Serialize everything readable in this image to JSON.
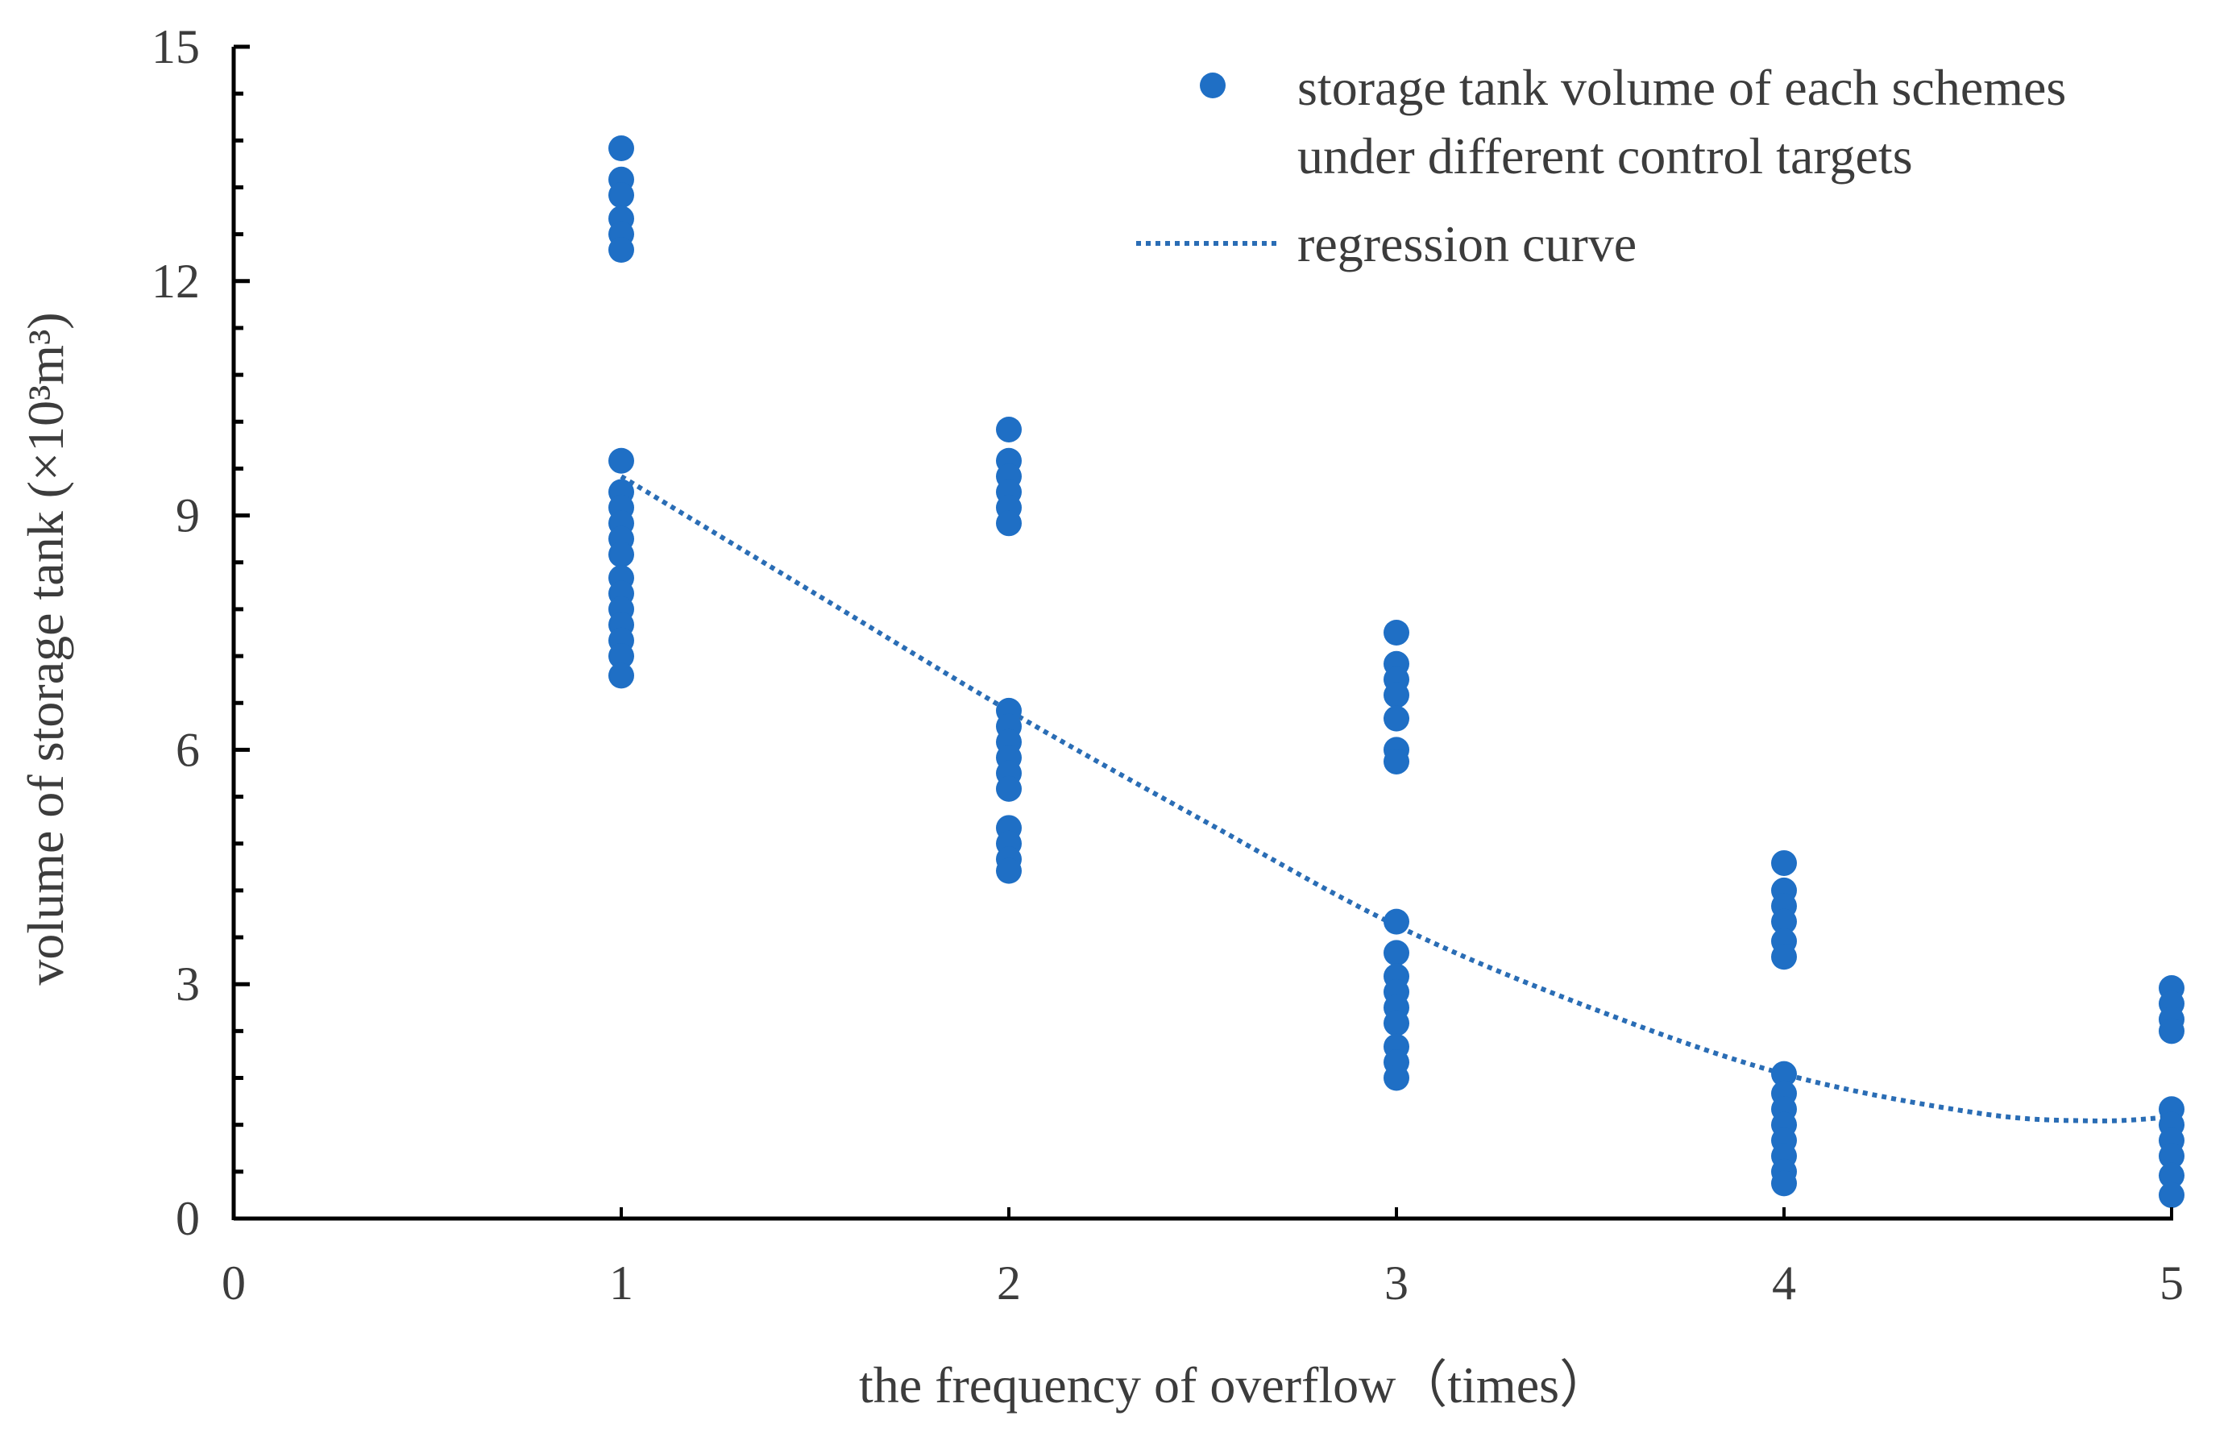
{
  "chart_data": {
    "type": "scatter",
    "title": "",
    "xlabel": "the frequency of overflow（times）",
    "ylabel": "volume of storage tank (×10³m³)",
    "xlim": [
      0,
      5
    ],
    "ylim": [
      0,
      15
    ],
    "xticks": [
      "0",
      "1",
      "2",
      "3",
      "4",
      "5"
    ],
    "yticks": [
      "0",
      "3",
      "6",
      "9",
      "12",
      "15"
    ],
    "grid": false,
    "legend_position": "top-right",
    "legend": {
      "points_line1": "storage tank volume of each schemes",
      "points_line2": "under different control targets",
      "curve": "regression curve"
    },
    "colors": {
      "points": "#1f6fc5",
      "curve": "#2a6db5",
      "axis": "#000000",
      "text": "#3c3c3c"
    },
    "series": [
      {
        "name": "storage tank volume of each schemes under different control targets",
        "kind": "scatter",
        "points": [
          {
            "x": 1,
            "y": 13.7
          },
          {
            "x": 1,
            "y": 13.3
          },
          {
            "x": 1,
            "y": 13.1
          },
          {
            "x": 1,
            "y": 12.8
          },
          {
            "x": 1,
            "y": 12.6
          },
          {
            "x": 1,
            "y": 12.4
          },
          {
            "x": 1,
            "y": 9.7
          },
          {
            "x": 1,
            "y": 9.3
          },
          {
            "x": 1,
            "y": 9.1
          },
          {
            "x": 1,
            "y": 8.9
          },
          {
            "x": 1,
            "y": 8.7
          },
          {
            "x": 1,
            "y": 8.5
          },
          {
            "x": 1,
            "y": 8.2
          },
          {
            "x": 1,
            "y": 8.0
          },
          {
            "x": 1,
            "y": 7.8
          },
          {
            "x": 1,
            "y": 7.6
          },
          {
            "x": 1,
            "y": 7.4
          },
          {
            "x": 1,
            "y": 7.2
          },
          {
            "x": 1,
            "y": 6.95
          },
          {
            "x": 2,
            "y": 10.1
          },
          {
            "x": 2,
            "y": 9.7
          },
          {
            "x": 2,
            "y": 9.5
          },
          {
            "x": 2,
            "y": 9.3
          },
          {
            "x": 2,
            "y": 9.1
          },
          {
            "x": 2,
            "y": 8.9
          },
          {
            "x": 2,
            "y": 6.5
          },
          {
            "x": 2,
            "y": 6.3
          },
          {
            "x": 2,
            "y": 6.1
          },
          {
            "x": 2,
            "y": 5.9
          },
          {
            "x": 2,
            "y": 5.7
          },
          {
            "x": 2,
            "y": 5.5
          },
          {
            "x": 2,
            "y": 5.0
          },
          {
            "x": 2,
            "y": 4.8
          },
          {
            "x": 2,
            "y": 4.6
          },
          {
            "x": 2,
            "y": 4.45
          },
          {
            "x": 3,
            "y": 7.5
          },
          {
            "x": 3,
            "y": 7.1
          },
          {
            "x": 3,
            "y": 6.9
          },
          {
            "x": 3,
            "y": 6.7
          },
          {
            "x": 3,
            "y": 6.4
          },
          {
            "x": 3,
            "y": 6.0
          },
          {
            "x": 3,
            "y": 5.85
          },
          {
            "x": 3,
            "y": 3.8
          },
          {
            "x": 3,
            "y": 3.4
          },
          {
            "x": 3,
            "y": 3.1
          },
          {
            "x": 3,
            "y": 2.9
          },
          {
            "x": 3,
            "y": 2.7
          },
          {
            "x": 3,
            "y": 2.5
          },
          {
            "x": 3,
            "y": 2.2
          },
          {
            "x": 3,
            "y": 2.0
          },
          {
            "x": 3,
            "y": 1.8
          },
          {
            "x": 4,
            "y": 4.55
          },
          {
            "x": 4,
            "y": 4.2
          },
          {
            "x": 4,
            "y": 4.0
          },
          {
            "x": 4,
            "y": 3.8
          },
          {
            "x": 4,
            "y": 3.55
          },
          {
            "x": 4,
            "y": 3.35
          },
          {
            "x": 4,
            "y": 1.85
          },
          {
            "x": 4,
            "y": 1.6
          },
          {
            "x": 4,
            "y": 1.4
          },
          {
            "x": 4,
            "y": 1.2
          },
          {
            "x": 4,
            "y": 1.0
          },
          {
            "x": 4,
            "y": 0.8
          },
          {
            "x": 4,
            "y": 0.6
          },
          {
            "x": 4,
            "y": 0.45
          },
          {
            "x": 5,
            "y": 2.95
          },
          {
            "x": 5,
            "y": 2.75
          },
          {
            "x": 5,
            "y": 2.55
          },
          {
            "x": 5,
            "y": 2.4
          },
          {
            "x": 5,
            "y": 1.4
          },
          {
            "x": 5,
            "y": 1.2
          },
          {
            "x": 5,
            "y": 1.0
          },
          {
            "x": 5,
            "y": 0.8
          },
          {
            "x": 5,
            "y": 0.55
          },
          {
            "x": 5,
            "y": 0.3
          }
        ]
      },
      {
        "name": "regression curve",
        "kind": "line",
        "style": "dotted",
        "x": [
          1,
          1.5,
          2,
          2.5,
          3,
          3.5,
          4,
          4.5,
          4.8,
          5
        ],
        "y": [
          9.5,
          8.0,
          6.5,
          5.1,
          3.75,
          2.7,
          1.85,
          1.35,
          1.25,
          1.3
        ]
      }
    ]
  }
}
